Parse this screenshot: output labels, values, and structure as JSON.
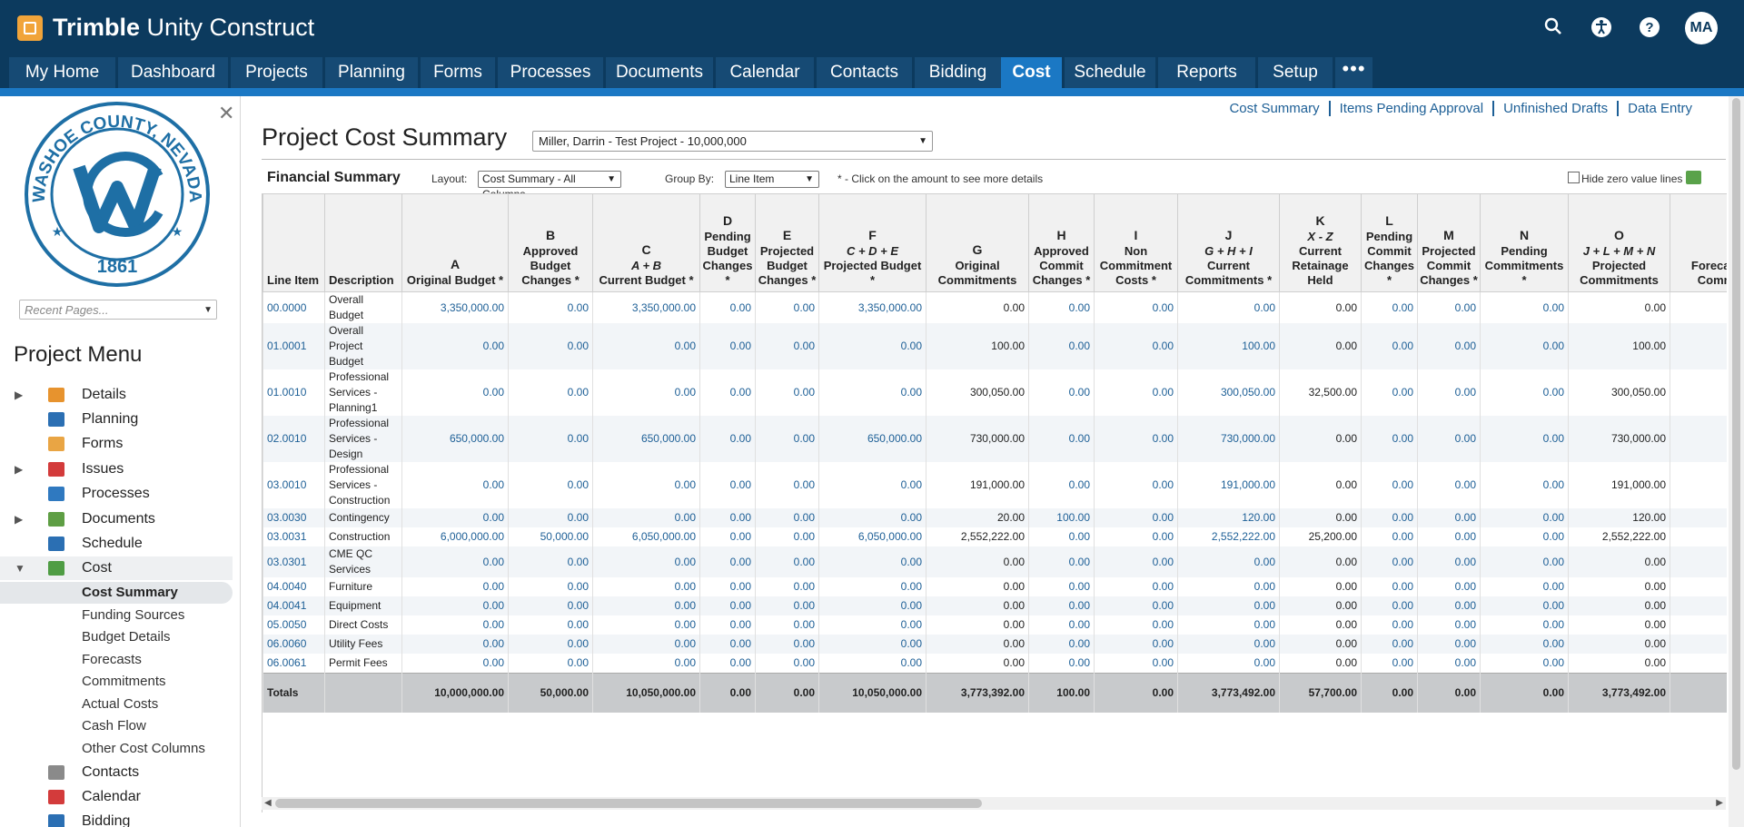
{
  "app": {
    "brand_bold": "Trimble",
    "brand_rest": " Unity Construct",
    "avatar": "MA"
  },
  "nav": {
    "tabs": [
      "My Home",
      "Dashboard",
      "Projects",
      "Planning",
      "Forms",
      "Processes",
      "Documents",
      "Calendar",
      "Contacts",
      "Bidding",
      "Cost",
      "Schedule",
      "Reports",
      "Setup"
    ],
    "active": "Cost",
    "more": "•••"
  },
  "sidebar": {
    "close": "✕",
    "seal_top": "WASHOE COUNTY, NEVADA",
    "seal_year": "1861",
    "recent_placeholder": "Recent Pages...",
    "menu_title": "Project Menu",
    "items": [
      {
        "label": "Details",
        "chev": "›",
        "color": "#e7932e"
      },
      {
        "label": "Planning",
        "chev": "",
        "color": "#2b6fb3"
      },
      {
        "label": "Forms",
        "chev": "",
        "color": "#e9a544"
      },
      {
        "label": "Issues",
        "chev": "›",
        "color": "#d33b3b"
      },
      {
        "label": "Processes",
        "chev": "",
        "color": "#2f79c0"
      },
      {
        "label": "Documents",
        "chev": "›",
        "color": "#5e9e44"
      },
      {
        "label": "Schedule",
        "chev": "",
        "color": "#2b6fb3"
      },
      {
        "label": "Cost",
        "chev": "⌄",
        "color": "#4f9d44"
      }
    ],
    "cost_sub": [
      "Cost Summary",
      "Funding Sources",
      "Budget Details",
      "Forecasts",
      "Commitments",
      "Actual Costs",
      "Cash Flow",
      "Other Cost Columns"
    ],
    "more_items": [
      {
        "label": "Contacts",
        "color": "#8a8a8a"
      },
      {
        "label": "Calendar",
        "color": "#d33b3b"
      },
      {
        "label": "Bidding",
        "color": "#2b6fb3"
      }
    ]
  },
  "main": {
    "links": [
      "Cost Summary",
      "Items Pending Approval",
      "Unfinished Drafts",
      "Data Entry"
    ],
    "title": "Project Cost Summary",
    "project": "Miller, Darrin - Test Project - 10,000,000",
    "fin_title": "Financial Summary",
    "layout_label": "Layout:",
    "layout_value": "Cost Summary - All Columns",
    "groupby_label": "Group By:",
    "groupby_value": "Line Item",
    "note": "* - Click on the amount to see more details",
    "hide_zero": "Hide zero value lines"
  },
  "table": {
    "columns": [
      {
        "letter": "",
        "formula": "",
        "label": "Line Item"
      },
      {
        "letter": "",
        "formula": "",
        "label": "Description"
      },
      {
        "letter": "A",
        "formula": "",
        "label": "Original Budget *"
      },
      {
        "letter": "B",
        "formula": "",
        "label": "Approved Budget Changes *"
      },
      {
        "letter": "C",
        "formula": "A + B",
        "label": "Current Budget *"
      },
      {
        "letter": "D",
        "formula": "",
        "label": "Pending Budget Changes *"
      },
      {
        "letter": "E",
        "formula": "",
        "label": "Projected Budget Changes *"
      },
      {
        "letter": "F",
        "formula": "C + D + E",
        "label": "Projected Budget *"
      },
      {
        "letter": "G",
        "formula": "",
        "label": "Original Commitments"
      },
      {
        "letter": "H",
        "formula": "",
        "label": "Approved Commit Changes *"
      },
      {
        "letter": "I",
        "formula": "",
        "label": "Non Commitment Costs *"
      },
      {
        "letter": "J",
        "formula": "G + H + I",
        "label": "Current Commitments *"
      },
      {
        "letter": "K",
        "formula": "X - Z",
        "label": "Current Retainage Held"
      },
      {
        "letter": "L",
        "formula": "",
        "label": "Pending Commit Changes *"
      },
      {
        "letter": "M",
        "formula": "",
        "label": "Projected Commit Changes *"
      },
      {
        "letter": "N",
        "formula": "",
        "label": "Pending Commitments *"
      },
      {
        "letter": "O",
        "formula": "J + L + M + N",
        "label": "Projected Commitments"
      },
      {
        "letter": "",
        "formula": "",
        "label": "Forecast Comm"
      }
    ],
    "rows": [
      {
        "line": "00.0000",
        "desc": "Overall Budget",
        "vals": [
          "3,350,000.00",
          "0.00",
          "3,350,000.00",
          "0.00",
          "0.00",
          "3,350,000.00",
          "0.00",
          "0.00",
          "0.00",
          "0.00",
          "0.00",
          "0.00",
          "0.00",
          "0.00",
          "0.00"
        ]
      },
      {
        "line": "01.0001",
        "desc": "Overall Project Budget",
        "vals": [
          "0.00",
          "0.00",
          "0.00",
          "0.00",
          "0.00",
          "0.00",
          "100.00",
          "0.00",
          "0.00",
          "100.00",
          "0.00",
          "0.00",
          "0.00",
          "0.00",
          "100.00"
        ]
      },
      {
        "line": "01.0010",
        "desc": "Professional Services - Planning1",
        "vals": [
          "0.00",
          "0.00",
          "0.00",
          "0.00",
          "0.00",
          "0.00",
          "300,050.00",
          "0.00",
          "0.00",
          "300,050.00",
          "32,500.00",
          "0.00",
          "0.00",
          "0.00",
          "300,050.00"
        ]
      },
      {
        "line": "02.0010",
        "desc": "Professional Services - Design",
        "vals": [
          "650,000.00",
          "0.00",
          "650,000.00",
          "0.00",
          "0.00",
          "650,000.00",
          "730,000.00",
          "0.00",
          "0.00",
          "730,000.00",
          "0.00",
          "0.00",
          "0.00",
          "0.00",
          "730,000.00"
        ]
      },
      {
        "line": "03.0010",
        "desc": "Professional Services - Construction",
        "vals": [
          "0.00",
          "0.00",
          "0.00",
          "0.00",
          "0.00",
          "0.00",
          "191,000.00",
          "0.00",
          "0.00",
          "191,000.00",
          "0.00",
          "0.00",
          "0.00",
          "0.00",
          "191,000.00"
        ]
      },
      {
        "line": "03.0030",
        "desc": "Contingency",
        "vals": [
          "0.00",
          "0.00",
          "0.00",
          "0.00",
          "0.00",
          "0.00",
          "20.00",
          "100.00",
          "0.00",
          "120.00",
          "0.00",
          "0.00",
          "0.00",
          "0.00",
          "120.00"
        ]
      },
      {
        "line": "03.0031",
        "desc": "Construction",
        "vals": [
          "6,000,000.00",
          "50,000.00",
          "6,050,000.00",
          "0.00",
          "0.00",
          "6,050,000.00",
          "2,552,222.00",
          "0.00",
          "0.00",
          "2,552,222.00",
          "25,200.00",
          "0.00",
          "0.00",
          "0.00",
          "2,552,222.00"
        ]
      },
      {
        "line": "03.0301",
        "desc": "CME QC Services",
        "vals": [
          "0.00",
          "0.00",
          "0.00",
          "0.00",
          "0.00",
          "0.00",
          "0.00",
          "0.00",
          "0.00",
          "0.00",
          "0.00",
          "0.00",
          "0.00",
          "0.00",
          "0.00"
        ]
      },
      {
        "line": "04.0040",
        "desc": "Furniture",
        "vals": [
          "0.00",
          "0.00",
          "0.00",
          "0.00",
          "0.00",
          "0.00",
          "0.00",
          "0.00",
          "0.00",
          "0.00",
          "0.00",
          "0.00",
          "0.00",
          "0.00",
          "0.00"
        ]
      },
      {
        "line": "04.0041",
        "desc": "Equipment",
        "vals": [
          "0.00",
          "0.00",
          "0.00",
          "0.00",
          "0.00",
          "0.00",
          "0.00",
          "0.00",
          "0.00",
          "0.00",
          "0.00",
          "0.00",
          "0.00",
          "0.00",
          "0.00"
        ]
      },
      {
        "line": "05.0050",
        "desc": "Direct Costs",
        "vals": [
          "0.00",
          "0.00",
          "0.00",
          "0.00",
          "0.00",
          "0.00",
          "0.00",
          "0.00",
          "0.00",
          "0.00",
          "0.00",
          "0.00",
          "0.00",
          "0.00",
          "0.00"
        ]
      },
      {
        "line": "06.0060",
        "desc": "Utility Fees",
        "vals": [
          "0.00",
          "0.00",
          "0.00",
          "0.00",
          "0.00",
          "0.00",
          "0.00",
          "0.00",
          "0.00",
          "0.00",
          "0.00",
          "0.00",
          "0.00",
          "0.00",
          "0.00"
        ]
      },
      {
        "line": "06.0061",
        "desc": "Permit Fees",
        "vals": [
          "0.00",
          "0.00",
          "0.00",
          "0.00",
          "0.00",
          "0.00",
          "0.00",
          "0.00",
          "0.00",
          "0.00",
          "0.00",
          "0.00",
          "0.00",
          "0.00",
          "0.00"
        ]
      }
    ],
    "totals_label": "Totals",
    "totals": [
      "10,000,000.00",
      "50,000.00",
      "10,050,000.00",
      "0.00",
      "0.00",
      "10,050,000.00",
      "3,773,392.00",
      "100.00",
      "0.00",
      "3,773,492.00",
      "57,700.00",
      "0.00",
      "0.00",
      "0.00",
      "3,773,492.00"
    ]
  }
}
